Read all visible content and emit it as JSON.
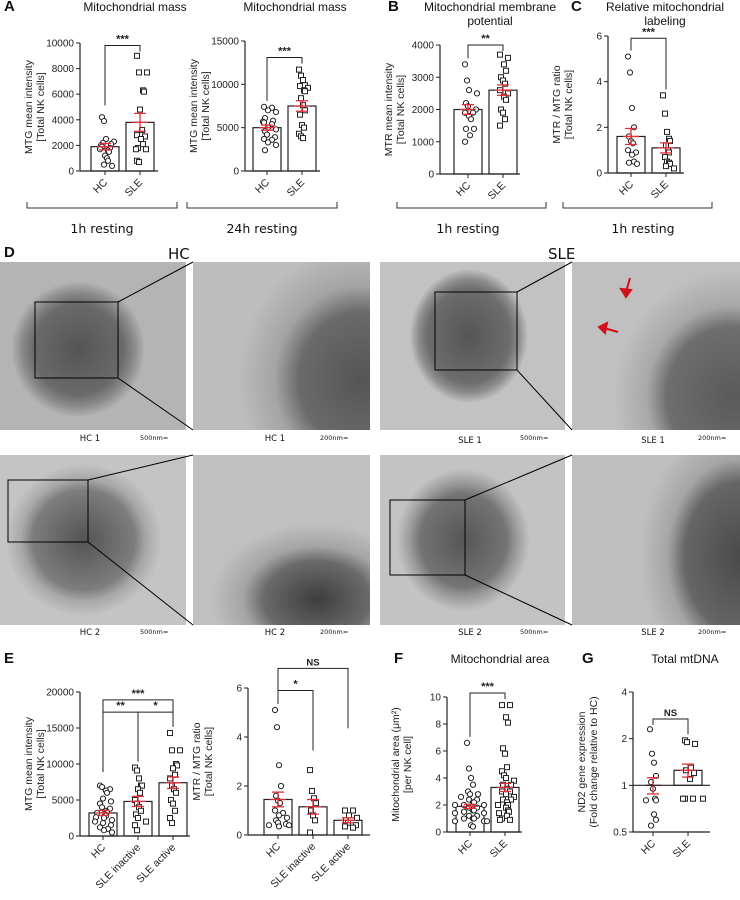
{
  "colors": {
    "accent_error": "#e0303a",
    "axis": "#222222"
  },
  "panels": {
    "A": {
      "letter": "A",
      "titles": [
        "Mitochondrial mass",
        "Mitochondrial mass"
      ],
      "conditions": [
        "1h resting",
        "24h resting"
      ]
    },
    "B": {
      "letter": "B",
      "title_lines": [
        "Mitochondrial membrane",
        "potential"
      ],
      "condition": "1h resting"
    },
    "C": {
      "letter": "C",
      "title_lines": [
        "Relative mitochondrial",
        "labeling"
      ],
      "condition": "1h resting"
    },
    "D": {
      "letter": "D",
      "group_hc": "HC",
      "group_sle": "SLE",
      "captions": {
        "hc1": "HC 1",
        "hc1_zoom": "HC 1",
        "sle1": "SLE 1",
        "sle1_zoom": "SLE 1",
        "hc2": "HC 2",
        "hc2_zoom": "HC 2",
        "sle2": "SLE 2",
        "sle2_zoom": "SLE 2"
      },
      "scale_500": "500nm=",
      "scale_200": "200nm="
    },
    "E": {
      "letter": "E"
    },
    "F": {
      "letter": "F",
      "title": "Mitochondrial area"
    },
    "G": {
      "letter": "G",
      "title": "Total mtDNA"
    }
  },
  "chart_data": [
    {
      "id": "A1",
      "type": "bar",
      "categories": [
        "HC",
        "SLE"
      ],
      "ylabel": [
        "MTG mean intensity",
        "[Total NK cells]"
      ],
      "ylim": [
        0,
        10000
      ],
      "yticks": [
        0,
        2000,
        4000,
        6000,
        8000,
        10000
      ],
      "means": [
        1900,
        3800
      ],
      "sem": [
        250,
        700
      ],
      "points": [
        [
          4200,
          3900,
          2500,
          2300,
          2200,
          2100,
          2000,
          1900,
          1800,
          1700,
          1600,
          1500,
          1200,
          1000,
          800,
          500,
          400
        ],
        [
          9000,
          7700,
          7700,
          6300,
          6200,
          4800,
          3200,
          2800,
          2700,
          2500,
          2100,
          1800,
          1700,
          1700,
          800,
          700
        ]
      ],
      "brackets": [
        {
          "from": 0,
          "to": 1,
          "label": "***",
          "y": 9800
        }
      ]
    },
    {
      "id": "A2",
      "type": "bar",
      "categories": [
        "HC",
        "SLE"
      ],
      "ylabel": [
        "MTG mean intensity",
        "[Total NK cells]"
      ],
      "ylim": [
        0,
        15000
      ],
      "yticks": [
        0,
        5000,
        10000,
        15000
      ],
      "means": [
        5000,
        7500
      ],
      "sem": [
        300,
        600
      ],
      "points": [
        [
          7400,
          7300,
          7000,
          6800,
          6100,
          5800,
          5700,
          5600,
          5400,
          5000,
          4800,
          4600,
          4200,
          3900,
          3700,
          3600,
          3300,
          3000,
          2400
        ],
        [
          11700,
          11000,
          10500,
          9900,
          9800,
          9600,
          9300,
          9200,
          8400,
          7600,
          7000,
          6500,
          5300,
          5000,
          4300,
          4000,
          3800
        ]
      ],
      "brackets": [
        {
          "from": 0,
          "to": 1,
          "label": "***",
          "y": 13100
        }
      ]
    },
    {
      "id": "B",
      "type": "bar",
      "categories": [
        "HC",
        "SLE"
      ],
      "ylabel": [
        "MTR mean intensity",
        "[Total NK cells]"
      ],
      "ylim": [
        0,
        4000
      ],
      "yticks": [
        0,
        1000,
        2000,
        3000,
        4000
      ],
      "means": [
        2000,
        2600
      ],
      "sem": [
        150,
        160
      ],
      "points": [
        [
          3400,
          2900,
          2600,
          2500,
          2200,
          2100,
          2000,
          1900,
          1900,
          1800,
          1700,
          1400,
          1400,
          1200,
          1000
        ],
        [
          3700,
          3600,
          3400,
          3200,
          3000,
          2900,
          2800,
          2600,
          2500,
          2400,
          2300,
          2000,
          1900,
          1700,
          1500
        ]
      ],
      "brackets": [
        {
          "from": 0,
          "to": 1,
          "label": "**",
          "y": 4000
        }
      ]
    },
    {
      "id": "C",
      "type": "bar",
      "categories": [
        "HC",
        "SLE"
      ],
      "ylabel": [
        "MTR / MTG ratio",
        "[Total NK cells]"
      ],
      "ylim": [
        0,
        6
      ],
      "yticks": [
        0,
        2,
        4,
        6
      ],
      "means": [
        1.6,
        1.1
      ],
      "sem": [
        0.35,
        0.22
      ],
      "points": [
        [
          5.1,
          4.4,
          2.85,
          2.0,
          1.6,
          1.4,
          1.3,
          1.0,
          0.9,
          0.8,
          0.5,
          0.45,
          0.4
        ],
        [
          3.4,
          2.6,
          1.8,
          1.5,
          1.4,
          1.2,
          1.0,
          0.9,
          0.7,
          0.5,
          0.45,
          0.4,
          0.3,
          0.2
        ]
      ],
      "brackets": [
        {
          "from": 0,
          "to": 1,
          "label": "***",
          "y": 5.9
        }
      ]
    },
    {
      "id": "E1",
      "type": "bar",
      "categories": [
        "HC",
        "SLE inactive",
        "SLE active"
      ],
      "ylabel": [
        "MTG mean intensity",
        "[Total NK cells]"
      ],
      "ylim": [
        0,
        20000
      ],
      "yticks": [
        0,
        5000,
        10000,
        15000,
        20000
      ],
      "means": [
        3200,
        4800,
        7400
      ],
      "sem": [
        350,
        700,
        800
      ],
      "points": [
        [
          7000,
          6800,
          6500,
          6300,
          6000,
          5200,
          4800,
          4500,
          4000,
          3800,
          3500,
          3300,
          3200,
          3000,
          2800,
          2600,
          2500,
          2200,
          2000,
          1800,
          1500,
          1200,
          1000,
          800,
          500
        ],
        [
          9500,
          9100,
          8000,
          7000,
          7000,
          6500,
          6000,
          5000,
          4500,
          4000,
          3500,
          3000,
          2500,
          2000,
          1500,
          800
        ],
        [
          14300,
          11900,
          11900,
          10000,
          9800,
          9400,
          8500,
          8000,
          7000,
          6500,
          6000,
          5000,
          4500,
          3500,
          2500,
          1800
        ]
      ],
      "brackets": [
        {
          "from": 0,
          "to": 2,
          "label": "***",
          "y": 18900
        },
        {
          "from": 0,
          "to": 1,
          "label": "**",
          "y": 17200
        },
        {
          "from": 1,
          "to": 2,
          "label": "*",
          "y": 17200
        }
      ]
    },
    {
      "id": "E2",
      "type": "bar",
      "categories": [
        "HC",
        "SLE inactive",
        "SLE active"
      ],
      "ylabel": [
        "MTR / MTG ratio",
        "[Total NK cells]"
      ],
      "ylim": [
        0,
        6
      ],
      "yticks": [
        0,
        2,
        4,
        6
      ],
      "means": [
        1.45,
        1.15,
        0.6
      ],
      "sem": [
        0.3,
        0.3,
        0.1
      ],
      "points": [
        [
          5.1,
          4.4,
          2.85,
          2.0,
          1.6,
          1.4,
          1.3,
          1.0,
          0.9,
          0.8,
          0.7,
          0.6,
          0.5,
          0.45,
          0.4,
          0.4,
          0.35
        ],
        [
          2.65,
          1.8,
          1.5,
          1.3,
          1.0,
          0.8,
          0.6,
          0.1
        ],
        [
          1.0,
          1.0,
          0.8,
          0.7,
          0.6,
          0.5,
          0.4,
          0.35,
          0.3
        ]
      ],
      "brackets": [
        {
          "from": 0,
          "to": 2,
          "label": "NS",
          "y": 6.8
        },
        {
          "from": 0,
          "to": 1,
          "label": "*",
          "y": 5.9
        }
      ]
    },
    {
      "id": "F",
      "type": "bar",
      "categories": [
        "HC",
        "SLE"
      ],
      "ylabel": [
        "Mitochondrial area (μm²)",
        "[per NK cell]"
      ],
      "ylim": [
        0,
        10
      ],
      "yticks": [
        0,
        2,
        4,
        6,
        8,
        10
      ],
      "means": [
        1.9,
        3.3
      ],
      "sem": [
        0.15,
        0.3
      ],
      "points": [
        [
          6.6,
          4.7,
          4.0,
          3.5,
          3.0,
          2.8,
          2.8,
          2.6,
          2.4,
          2.4,
          2.2,
          2.2,
          2.0,
          2.0,
          2.0,
          1.8,
          1.8,
          1.6,
          1.6,
          1.5,
          1.4,
          1.4,
          1.2,
          1.2,
          1.0,
          1.0,
          1.0,
          0.8,
          0.8,
          0.8,
          0.5,
          0.4
        ],
        [
          9.4,
          9.4,
          8.5,
          8.1,
          6.2,
          5.8,
          4.8,
          4.5,
          4.2,
          4.0,
          3.8,
          3.5,
          3.5,
          3.2,
          3.0,
          3.0,
          2.8,
          2.6,
          2.4,
          2.4,
          2.2,
          2.0,
          2.0,
          1.8,
          1.6,
          1.5,
          1.4,
          1.2,
          1.0,
          0.9,
          0.9
        ]
      ],
      "brackets": [
        {
          "from": 0,
          "to": 1,
          "label": "***",
          "y": 10.3
        }
      ]
    },
    {
      "id": "G",
      "type": "bar",
      "scale": "log2",
      "baseline": 1,
      "categories": [
        "HC",
        "SLE"
      ],
      "ylabel": [
        "ND2 gene expression",
        "(Fold change relative to HC)"
      ],
      "ylim": [
        0.5,
        4
      ],
      "yticks": [
        0.5,
        1,
        2,
        4
      ],
      "means": [
        1.0,
        1.25
      ],
      "sem": [
        0.12,
        0.12
      ],
      "points": [
        [
          2.3,
          1.6,
          1.4,
          1.15,
          1.05,
          0.95,
          0.82,
          0.8,
          0.8,
          0.65,
          0.6,
          0.55
        ],
        [
          1.95,
          1.9,
          1.85,
          1.3,
          1.25,
          1.2,
          1.1,
          0.82,
          0.82,
          0.82,
          0.82
        ]
      ],
      "brackets": [
        {
          "from": 0,
          "to": 1,
          "label": "NS",
          "y": 2.68
        }
      ]
    }
  ]
}
